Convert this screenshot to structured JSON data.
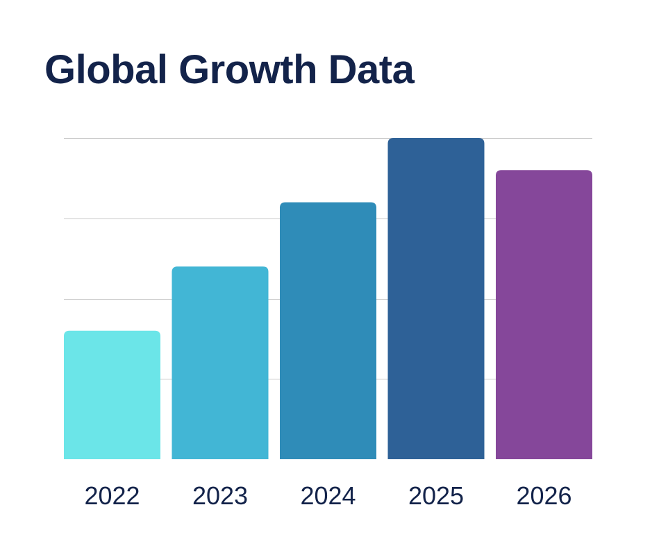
{
  "chart_data": {
    "type": "bar",
    "title": "Global Growth Data",
    "categories": [
      "2022",
      "2023",
      "2024",
      "2025",
      "2026"
    ],
    "values": [
      40,
      60,
      80,
      100,
      90
    ],
    "colors": [
      "#6be5e8",
      "#42b6d5",
      "#2f8cb8",
      "#2e6197",
      "#85479a"
    ],
    "xlabel": "",
    "ylabel": "",
    "ylim": [
      0,
      100
    ],
    "yticks": [
      0,
      25,
      50,
      75,
      100
    ],
    "grid": true,
    "legend": false
  }
}
